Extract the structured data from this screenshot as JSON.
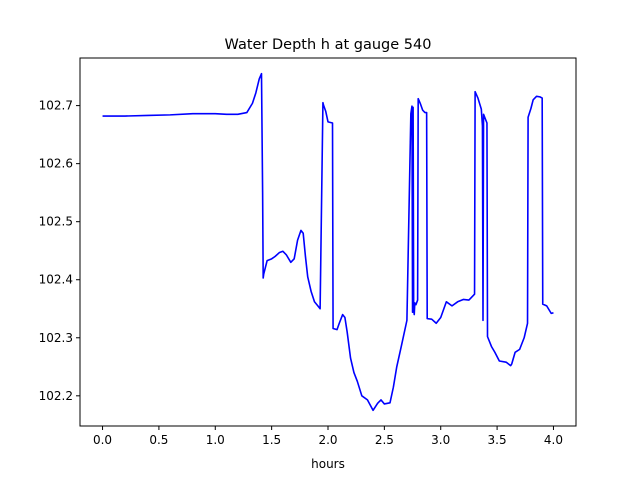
{
  "chart_data": {
    "type": "line",
    "title": "Water Depth h at gauge 540",
    "xlabel": "hours",
    "ylabel": "",
    "xlim": [
      -0.2,
      4.2
    ],
    "ylim": [
      102.148,
      102.782
    ],
    "xticks": [
      0.0,
      0.5,
      1.0,
      1.5,
      2.0,
      2.5,
      3.0,
      3.5,
      4.0
    ],
    "xtick_labels": [
      "0.0",
      "0.5",
      "1.0",
      "1.5",
      "2.0",
      "2.5",
      "3.0",
      "3.5",
      "4.0"
    ],
    "yticks": [
      102.2,
      102.3,
      102.4,
      102.5,
      102.6,
      102.7
    ],
    "ytick_labels": [
      "102.2",
      "102.3",
      "102.4",
      "102.5",
      "102.6",
      "102.7"
    ],
    "grid": false,
    "series": [
      {
        "color": "#0000ff",
        "x": [
          0.0,
          0.2,
          0.4,
          0.6,
          0.8,
          1.0,
          1.1,
          1.2,
          1.28,
          1.33,
          1.36,
          1.39,
          1.41,
          1.42,
          1.425,
          1.43,
          1.46,
          1.5,
          1.53,
          1.57,
          1.6,
          1.63,
          1.67,
          1.7,
          1.73,
          1.76,
          1.78,
          1.8,
          1.82,
          1.85,
          1.88,
          1.91,
          1.93,
          1.955,
          1.96,
          1.98,
          2.0,
          2.04,
          2.045,
          2.08,
          2.1,
          2.13,
          2.15,
          2.17,
          2.2,
          2.23,
          2.26,
          2.3,
          2.35,
          2.4,
          2.44,
          2.47,
          2.5,
          2.55,
          2.58,
          2.61,
          2.65,
          2.7,
          2.735,
          2.745,
          2.75,
          2.755,
          2.76,
          2.765,
          2.77,
          2.78,
          2.795,
          2.8,
          2.82,
          2.84,
          2.86,
          2.875,
          2.88,
          2.92,
          2.96,
          3.0,
          3.05,
          3.1,
          3.15,
          3.2,
          3.25,
          3.3,
          3.305,
          3.33,
          3.36,
          3.37,
          3.375,
          3.38,
          3.41,
          3.415,
          3.45,
          3.48,
          3.52,
          3.58,
          3.62,
          3.63,
          3.66,
          3.7,
          3.74,
          3.77,
          3.775,
          3.8,
          3.82,
          3.85,
          3.88,
          3.9,
          3.905,
          3.94,
          3.98,
          4.0
        ],
        "y": [
          102.682,
          102.682,
          102.683,
          102.684,
          102.686,
          102.686,
          102.685,
          102.685,
          102.688,
          102.704,
          102.722,
          102.746,
          102.755,
          102.55,
          102.403,
          102.41,
          102.433,
          102.436,
          102.44,
          102.447,
          102.449,
          102.443,
          102.43,
          102.436,
          102.468,
          102.485,
          102.48,
          102.44,
          102.405,
          102.38,
          102.362,
          102.355,
          102.35,
          102.705,
          102.701,
          102.69,
          102.672,
          102.67,
          102.316,
          102.314,
          102.325,
          102.34,
          102.335,
          102.31,
          102.265,
          102.24,
          102.225,
          102.2,
          102.193,
          102.175,
          102.187,
          102.193,
          102.186,
          102.188,
          102.215,
          102.25,
          102.285,
          102.33,
          102.686,
          102.699,
          102.344,
          102.697,
          102.35,
          102.34,
          102.36,
          102.357,
          102.365,
          102.712,
          102.703,
          102.692,
          102.688,
          102.688,
          102.333,
          102.332,
          102.325,
          102.335,
          102.362,
          102.355,
          102.362,
          102.366,
          102.365,
          102.375,
          102.724,
          102.713,
          102.694,
          102.665,
          102.33,
          102.685,
          102.67,
          102.302,
          102.285,
          102.275,
          102.26,
          102.258,
          102.252,
          102.255,
          102.275,
          102.28,
          102.3,
          102.325,
          102.68,
          102.695,
          102.71,
          102.716,
          102.715,
          102.713,
          102.358,
          102.355,
          102.342,
          102.343
        ]
      }
    ]
  }
}
